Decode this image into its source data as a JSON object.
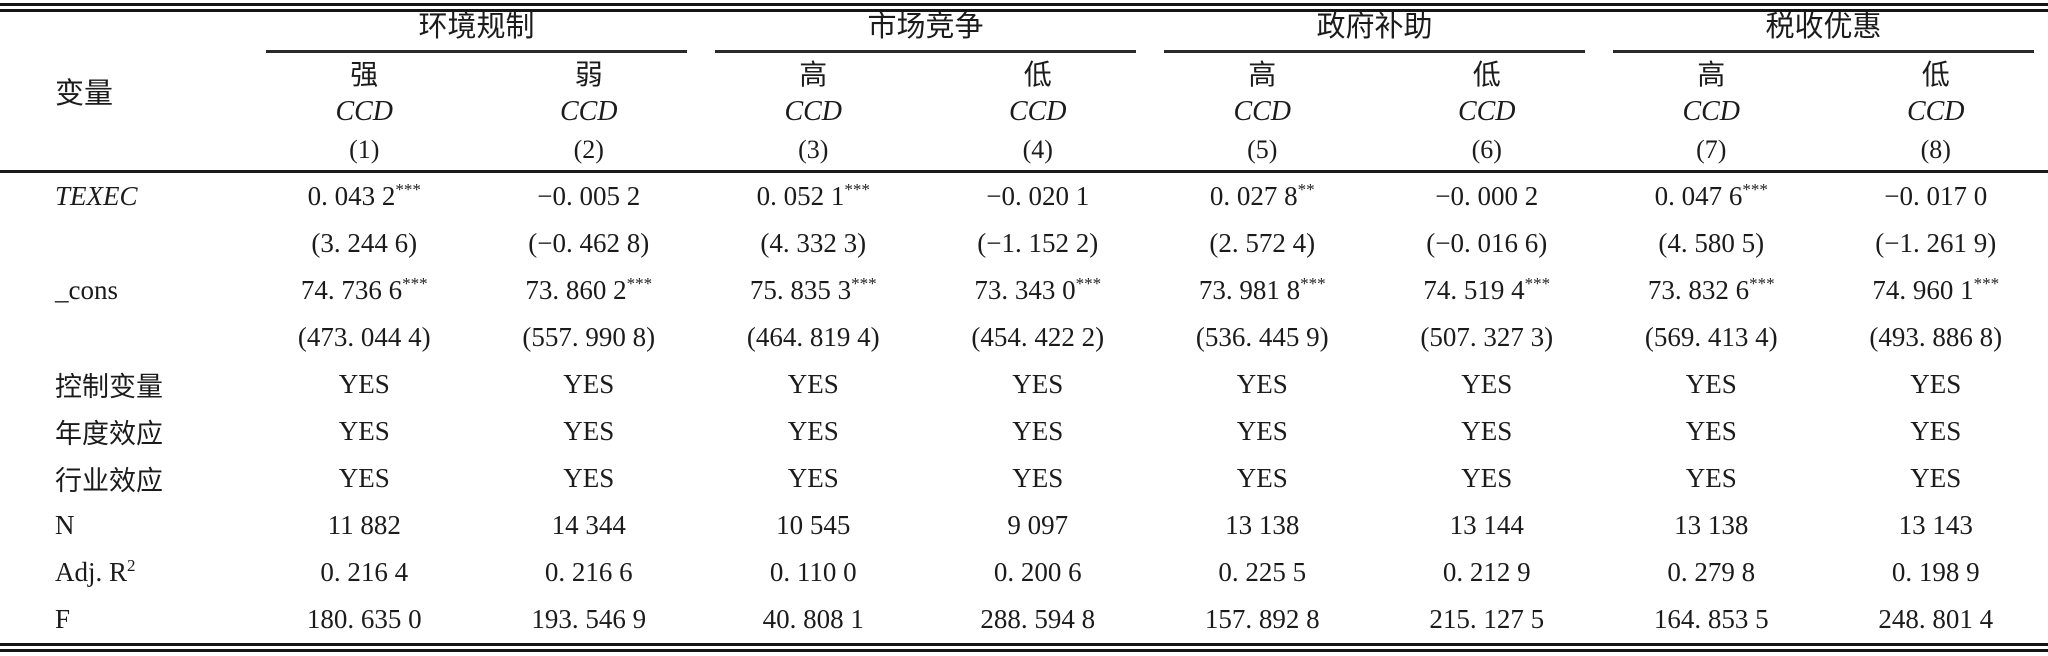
{
  "table": {
    "corner_label": "变量",
    "groups": [
      {
        "label": "环境规制"
      },
      {
        "label": "市场竞争"
      },
      {
        "label": "政府补助"
      },
      {
        "label": "税收优惠"
      }
    ],
    "subs": [
      "强",
      "弱",
      "高",
      "低",
      "高",
      "低",
      "高",
      "低"
    ],
    "dep_labels": [
      "CCD",
      "CCD",
      "CCD",
      "CCD",
      "CCD",
      "CCD",
      "CCD",
      "CCD"
    ],
    "col_nums": [
      "(1)",
      "(2)",
      "(3)",
      "(4)",
      "(5)",
      "(6)",
      "(7)",
      "(8)"
    ],
    "rows": [
      {
        "label": "TEXEC",
        "c": [
          {
            "v": "0. 043 2",
            "s": "***"
          },
          {
            "v": "−0. 005 2",
            "s": ""
          },
          {
            "v": "0. 052 1",
            "s": "***"
          },
          {
            "v": "−0. 020 1",
            "s": ""
          },
          {
            "v": "0. 027 8",
            "s": "**"
          },
          {
            "v": "−0. 000 2",
            "s": ""
          },
          {
            "v": "0. 047 6",
            "s": "***"
          },
          {
            "v": "−0. 017 0",
            "s": ""
          }
        ]
      },
      {
        "label": "",
        "c": [
          "(3. 244 6)",
          "(−0. 462 8)",
          "(4. 332 3)",
          "(−1. 152 2)",
          "(2. 572 4)",
          "(−0. 016 6)",
          "(4. 580 5)",
          "(−1. 261 9)"
        ]
      },
      {
        "label": "_cons",
        "c": [
          {
            "v": "74. 736 6",
            "s": "***"
          },
          {
            "v": "73. 860 2",
            "s": "***"
          },
          {
            "v": "75. 835 3",
            "s": "***"
          },
          {
            "v": "73. 343 0",
            "s": "***"
          },
          {
            "v": "73. 981 8",
            "s": "***"
          },
          {
            "v": "74. 519 4",
            "s": "***"
          },
          {
            "v": "73. 832 6",
            "s": "***"
          },
          {
            "v": "74. 960 1",
            "s": "***"
          }
        ]
      },
      {
        "label": "",
        "c": [
          "(473. 044 4)",
          "(557. 990 8)",
          "(464. 819 4)",
          "(454. 422 2)",
          "(536. 445 9)",
          "(507. 327 3)",
          "(569. 413 4)",
          "(493. 886 8)"
        ]
      },
      {
        "label": "控制变量",
        "c": [
          "YES",
          "YES",
          "YES",
          "YES",
          "YES",
          "YES",
          "YES",
          "YES"
        ]
      },
      {
        "label": "年度效应",
        "c": [
          "YES",
          "YES",
          "YES",
          "YES",
          "YES",
          "YES",
          "YES",
          "YES"
        ]
      },
      {
        "label": "行业效应",
        "c": [
          "YES",
          "YES",
          "YES",
          "YES",
          "YES",
          "YES",
          "YES",
          "YES"
        ]
      },
      {
        "label": "N",
        "c": [
          "11 882",
          "14 344",
          "10 545",
          "9 097",
          "13 138",
          "13 144",
          "13 138",
          "13 143"
        ]
      },
      {
        "label": "Adj. R",
        "label_sup": "2",
        "c": [
          "0. 216 4",
          "0. 216 6",
          "0. 110 0",
          "0. 200 6",
          "0. 225 5",
          "0. 212 9",
          "0. 279 8",
          "0. 198 9"
        ]
      },
      {
        "label": "F",
        "c": [
          "180. 635 0",
          "193. 546 9",
          "40. 808 1",
          "288. 594 8",
          "157. 892 8",
          "215. 127 5",
          "164. 853 5",
          "248. 801 4"
        ]
      }
    ]
  }
}
